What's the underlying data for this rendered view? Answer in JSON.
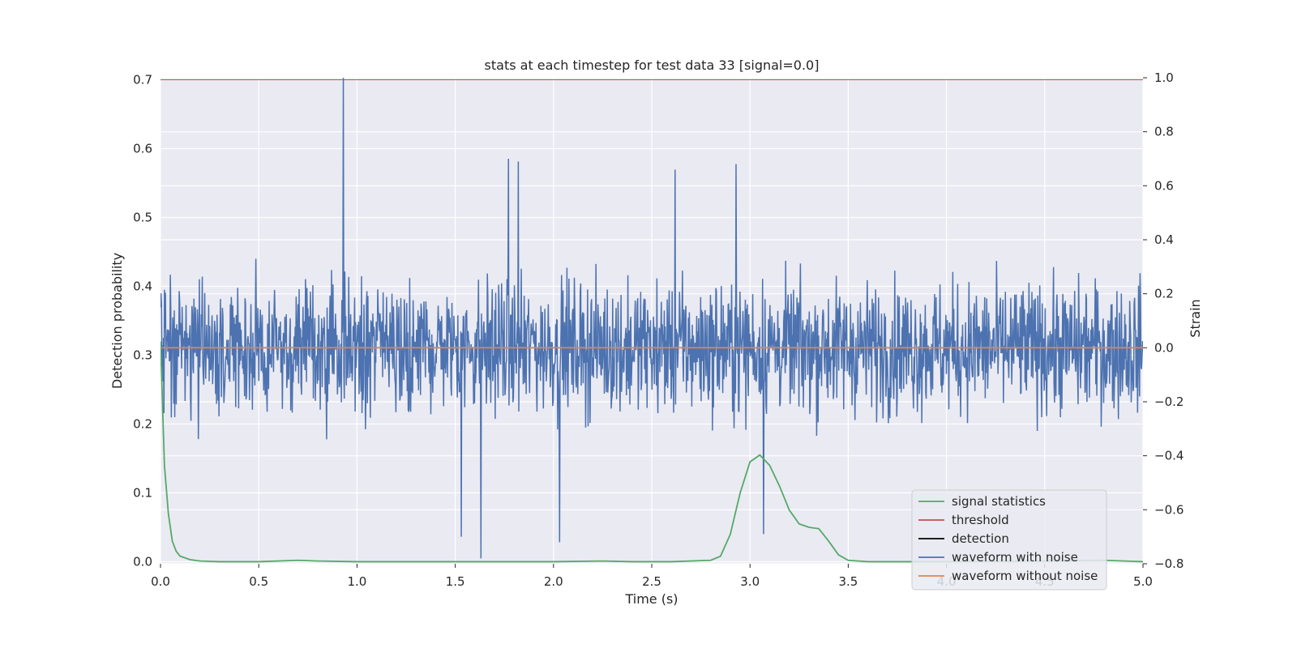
{
  "chart_data": {
    "type": "line",
    "title": "stats at each timestep for test data 33 [signal=0.0]",
    "xlabel": "Time (s)",
    "ylabel": "Detection probability",
    "y2label": "Strain",
    "xlim": [
      0.0,
      5.0
    ],
    "ylim": [
      -0.003,
      0.703
    ],
    "y2lim": [
      -0.8,
      1.0
    ],
    "xticks": [
      "0.0",
      "0.5",
      "1.0",
      "1.5",
      "2.0",
      "2.5",
      "3.0",
      "3.5",
      "4.0",
      "4.5",
      "5.0"
    ],
    "yticks": [
      "0.0",
      "0.1",
      "0.2",
      "0.3",
      "0.4",
      "0.5",
      "0.6",
      "0.7"
    ],
    "y2ticks": [
      "−0.8",
      "−0.6",
      "−0.4",
      "−0.2",
      "0.0",
      "0.2",
      "0.4",
      "0.6",
      "0.8",
      "1.0"
    ],
    "grid": true,
    "legend_position": "lower-right",
    "series": [
      {
        "name": "signal statistics",
        "axis": "left",
        "color": "#55a868",
        "x": [
          0.0,
          0.02,
          0.04,
          0.06,
          0.08,
          0.1,
          0.15,
          0.2,
          0.3,
          0.5,
          0.7,
          0.8,
          1.0,
          1.5,
          2.0,
          2.25,
          2.4,
          2.6,
          2.8,
          2.85,
          2.9,
          2.95,
          3.0,
          3.05,
          3.1,
          3.15,
          3.2,
          3.25,
          3.3,
          3.35,
          3.4,
          3.45,
          3.5,
          3.6,
          4.0,
          4.5,
          4.8,
          5.0
        ],
        "y": [
          0.32,
          0.14,
          0.07,
          0.03,
          0.015,
          0.008,
          0.003,
          0.001,
          0.0,
          0.0,
          0.002,
          0.001,
          0.0,
          0.0,
          0.0,
          0.001,
          0.0,
          0.0,
          0.002,
          0.008,
          0.04,
          0.1,
          0.145,
          0.155,
          0.14,
          0.11,
          0.075,
          0.055,
          0.05,
          0.048,
          0.03,
          0.01,
          0.002,
          0.0,
          0.0,
          0.001,
          0.002,
          0.0
        ]
      },
      {
        "name": "threshold",
        "axis": "left",
        "color": "#c44e52",
        "x": [
          0.0,
          5.0
        ],
        "y": [
          0.7,
          0.7
        ]
      },
      {
        "name": "detection",
        "axis": "left",
        "color": "#000000",
        "x": [],
        "y": []
      },
      {
        "name": "waveform with noise",
        "axis": "right",
        "color": "#4c72b0",
        "generated": "noise",
        "samples": 2000,
        "amplitude_range": [
          -0.78,
          1.0
        ],
        "spikes": [
          [
            0.93,
            1.0
          ],
          [
            1.63,
            -0.78
          ],
          [
            1.53,
            -0.7
          ],
          [
            2.03,
            -0.72
          ],
          [
            3.07,
            -0.69
          ],
          [
            1.77,
            0.7
          ],
          [
            1.82,
            0.69
          ],
          [
            2.93,
            0.68
          ],
          [
            2.62,
            0.66
          ]
        ]
      },
      {
        "name": "waveform without noise",
        "axis": "right",
        "color": "#dd8452",
        "x": [
          0.0,
          5.0
        ],
        "y": [
          0.0,
          0.0
        ]
      }
    ]
  }
}
